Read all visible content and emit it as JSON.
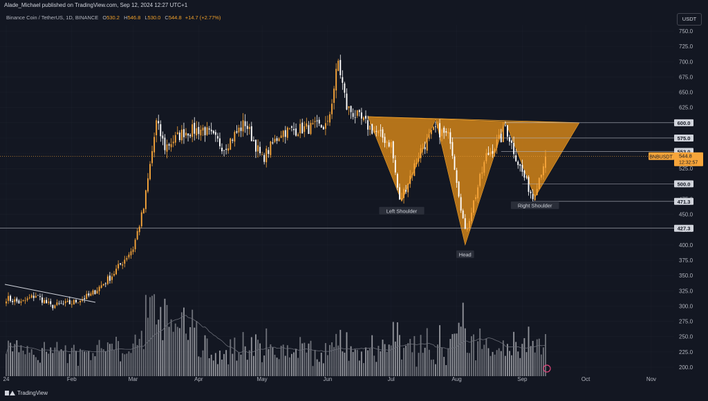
{
  "header": {
    "published": "Alade_Michael published on TradingView.com, Sep 12, 2024 12:27 UTC+1",
    "symbol": "Binance Coin / TetherUS, 1D, BINANCE",
    "open_label": "O",
    "open": "530.2",
    "high_label": "H",
    "high": "546.8",
    "low_label": "L",
    "low": "530.0",
    "close_label": "C",
    "close": "544.8",
    "change": "+14.7 (+2.77%)"
  },
  "currency_button": "USDT",
  "footer": {
    "brand": "TradingView"
  },
  "colors": {
    "background": "#131722",
    "candle": "#f7a53a",
    "pattern_fill": "#c67d1a",
    "grid": "#363a45",
    "text": "#d1d4dc"
  },
  "chart_data": {
    "type": "candlestick",
    "y_axis_ticks": [
      "750.0",
      "725.0",
      "700.0",
      "675.0",
      "650.0",
      "625.0",
      "600.0",
      "575.0",
      "550.0",
      "525.0",
      "500.0",
      "475.0",
      "450.0",
      "425.0",
      "400.0",
      "375.0",
      "350.0",
      "325.0",
      "300.0",
      "275.0",
      "250.0",
      "225.0",
      "200.0"
    ],
    "ylim": [
      190,
      757
    ],
    "x_axis_labels": [
      "24",
      "Feb",
      "Mar",
      "Apr",
      "May",
      "Jun",
      "Jul",
      "Aug",
      "Sep",
      "Oct",
      "Nov"
    ],
    "price_levels": [
      {
        "label": "600.0",
        "value": 600.0
      },
      {
        "label": "575.0",
        "value": 575.0
      },
      {
        "label": "553.0",
        "value": 553.0
      },
      {
        "label": "500.0",
        "value": 500.0
      },
      {
        "label": "471.3",
        "value": 471.3
      },
      {
        "label": "427.3",
        "value": 427.3
      }
    ],
    "last_price": {
      "symbol": "BNBUSDT",
      "value": "544.8",
      "countdown": "12:32:57"
    },
    "annotations": [
      "Left Shoulder",
      "Head",
      "Right Shoulder"
    ],
    "pattern": "Inverse Head and Shoulders",
    "close_points": [
      {
        "date": "Jan 1",
        "close": 313
      },
      {
        "date": "Jan 8",
        "close": 305
      },
      {
        "date": "Jan 15",
        "close": 318
      },
      {
        "date": "Jan 22",
        "close": 300
      },
      {
        "date": "Feb 1",
        "close": 305
      },
      {
        "date": "Feb 10",
        "close": 318
      },
      {
        "date": "Feb 20",
        "close": 350
      },
      {
        "date": "Mar 1",
        "close": 395
      },
      {
        "date": "Mar 6",
        "close": 460
      },
      {
        "date": "Mar 12",
        "close": 600
      },
      {
        "date": "Mar 16",
        "close": 560
      },
      {
        "date": "Mar 25",
        "close": 585
      },
      {
        "date": "Apr 3",
        "close": 590
      },
      {
        "date": "Apr 13",
        "close": 560
      },
      {
        "date": "Apr 23",
        "close": 600
      },
      {
        "date": "May 1",
        "close": 540
      },
      {
        "date": "May 10",
        "close": 585
      },
      {
        "date": "May 20",
        "close": 590
      },
      {
        "date": "Jun 1",
        "close": 595
      },
      {
        "date": "Jun 6",
        "close": 700
      },
      {
        "date": "Jun 10",
        "close": 625
      },
      {
        "date": "Jun 20",
        "close": 595
      },
      {
        "date": "Jul 1",
        "close": 565
      },
      {
        "date": "Jul 5",
        "close": 470
      },
      {
        "date": "Jul 15",
        "close": 555
      },
      {
        "date": "Jul 22",
        "close": 590
      },
      {
        "date": "Jul 29",
        "close": 575
      },
      {
        "date": "Aug 5",
        "close": 420
      },
      {
        "date": "Aug 15",
        "close": 545
      },
      {
        "date": "Aug 22",
        "close": 575
      },
      {
        "date": "Aug 24",
        "close": 595
      },
      {
        "date": "Aug 30",
        "close": 535
      },
      {
        "date": "Sep 6",
        "close": 478
      },
      {
        "date": "Sep 12",
        "close": 544.8
      }
    ]
  }
}
